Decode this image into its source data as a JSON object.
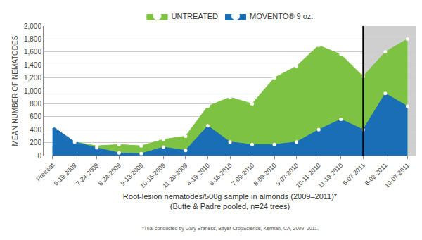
{
  "chart_data": {
    "type": "area",
    "x_label": "Root-lesion nematodes/500g sample in almonds (2009–2011)*",
    "subtitle": "(Butte & Padre pooled, n=24 trees)",
    "y_label": "MEAN NUMBER OF NEMATODES",
    "annotations": [
      "*Trial conducted by Gary Braness, Bayer CropScience, Kerman, CA, 2009–2011."
    ],
    "categories": [
      "Pretreat",
      "6-19-2009",
      "7-24-2009",
      "8-24-2009",
      "9-18-2009",
      "10-16-2009",
      "11-20-2009",
      "4-19-2010",
      "6-16-2010",
      "7-09-2010",
      "8-09-2010",
      "9-07-2010",
      "10-11-2010",
      "11-19-2010",
      "5-07-2011",
      "8-02-2011",
      "10-07-2011"
    ],
    "series": [
      {
        "name": "UNTREATED",
        "color": "#7dc242",
        "marker": "circle",
        "line_style": "solid",
        "values": [
          170,
          210,
          150,
          170,
          150,
          250,
          300,
          760,
          900,
          800,
          1200,
          1380,
          1700,
          1560,
          1220,
          1600,
          1800
        ]
      },
      {
        "name": "MOVENTO® 9 oz.",
        "color": "#1a6eb5",
        "marker": "circle",
        "line_style": "solid",
        "values": [
          450,
          210,
          120,
          40,
          30,
          130,
          80,
          460,
          210,
          170,
          170,
          210,
          400,
          560,
          400,
          960,
          760
        ]
      }
    ],
    "ylim": [
      0,
      2000
    ],
    "yticks": [
      0,
      200,
      400,
      600,
      800,
      {
        "value": 1000,
        "label": "1,000"
      },
      {
        "value": 1200,
        "label": "1,200"
      },
      {
        "value": 1400,
        "label": "1,400"
      },
      {
        "value": 1600,
        "label": "1,600"
      },
      {
        "value": 1800,
        "label": "1,800"
      },
      {
        "value": 2000,
        "label": "2,000"
      }
    ],
    "grid": true,
    "legend": "top",
    "stacked": false
  }
}
